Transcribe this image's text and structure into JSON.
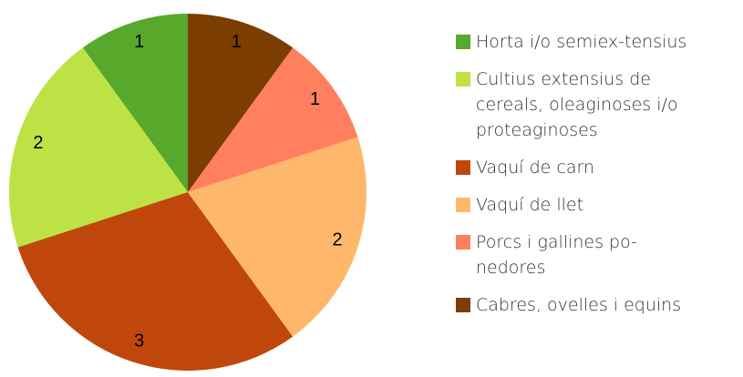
{
  "chart_data": {
    "type": "pie",
    "categories": [
      "Horta i/o semiex-tensius",
      "Cultius extensius de cereals, oleaginoses i/o proteaginoses",
      "Vaquí de carn",
      "Vaquí de llet",
      "Porcs i gallines po-nedores",
      "Cabres, ovelles i equins"
    ],
    "values": [
      1,
      2,
      3,
      2,
      1,
      1
    ],
    "colors": [
      "#57a82b",
      "#bde246",
      "#c0470c",
      "#ffb86b",
      "#ff7f5e",
      "#7b3d00"
    ],
    "legend": "right"
  }
}
